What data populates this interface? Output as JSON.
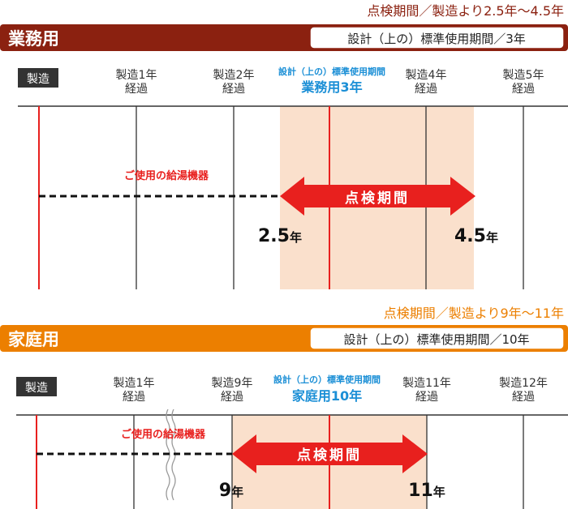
{
  "colors": {
    "business": "#8b2110",
    "home": "#ec7f00",
    "red": "#e8201e",
    "blue": "#1b8fd6",
    "band": "#fae0cc",
    "dark": "#333333"
  },
  "business": {
    "inspection_range": "点検期間／製造より2.5年～4.5年",
    "title": "業務用",
    "design_period": "設計（上の）標準使用期間／3年",
    "manufacture_label": "製造",
    "ticks": [
      [
        "製造1年",
        "経過"
      ],
      [
        "製造2年",
        "経過"
      ],
      [
        "製造4年",
        "経過"
      ],
      [
        "製造5年",
        "経過"
      ]
    ],
    "standard_caption": "設計（上の）標準使用期間",
    "standard_name": "業務用",
    "standard_num": "3年",
    "device_label": "ご使用の給湯機器",
    "arrow_label": "点検期間",
    "start_num": "2.5",
    "start_unit": "年",
    "end_num": "4.5",
    "end_unit": "年"
  },
  "home": {
    "inspection_range": "点検期間／製造より9年～11年",
    "title": "家庭用",
    "design_period": "設計（上の）標準使用期間／10年",
    "manufacture_label": "製造",
    "ticks": [
      [
        "製造1年",
        "経過"
      ],
      [
        "製造9年",
        "経過"
      ],
      [
        "製造11年",
        "経過"
      ],
      [
        "製造12年",
        "経過"
      ]
    ],
    "standard_caption": "設計（上の）標準使用期間",
    "standard_name": "家庭用",
    "standard_num": "10年",
    "device_label": "ご使用の給湯機器",
    "arrow_label": "点検期間",
    "start_num": "9",
    "start_unit": "年",
    "end_num": "11",
    "end_unit": "年"
  }
}
